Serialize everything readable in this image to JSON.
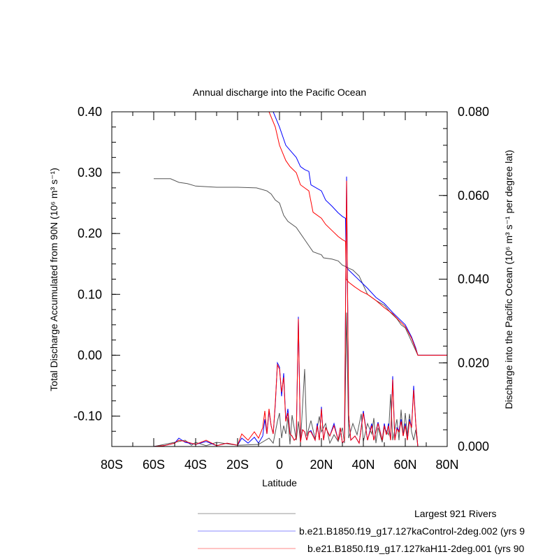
{
  "chart_data": {
    "type": "line",
    "title": "Annual discharge into the Pacific Ocean",
    "xlabel": "Latitude",
    "ylabel_left": "Total Discharge Accumulated from 90N (10⁶ m³ s⁻¹)",
    "ylabel_right": "Discharge into the Pacific Ocean (10⁶ m³ s⁻¹ per degree lat)",
    "xlim": [
      -80,
      80
    ],
    "ylim_left": [
      -0.15,
      0.4
    ],
    "ylim_right": [
      0.0,
      0.08
    ],
    "x_ticks": [
      -80,
      -60,
      -40,
      -20,
      0,
      20,
      40,
      60,
      80
    ],
    "x_tick_labels": [
      "80S",
      "60S",
      "40S",
      "20S",
      "0",
      "20N",
      "40N",
      "60N",
      "80N"
    ],
    "y_left_ticks": [
      -0.1,
      0.0,
      0.1,
      0.2,
      0.3,
      0.4
    ],
    "y_left_tick_labels": [
      "-0.10",
      "0.00",
      "0.10",
      "0.20",
      "0.30",
      "0.40"
    ],
    "y_right_ticks": [
      0.0,
      0.02,
      0.04,
      0.06,
      0.08
    ],
    "y_right_tick_labels": [
      "0.000",
      "0.020",
      "0.040",
      "0.060",
      "0.080"
    ],
    "legend_position": "bottom",
    "series": [
      {
        "name": "Largest 921 Rivers",
        "color": "#555555",
        "accumulated": {
          "x": [
            -60,
            -52,
            -48,
            -44,
            -40,
            -30,
            -20,
            -11,
            -6,
            -4,
            -2,
            0,
            2,
            4,
            8,
            10,
            12,
            14,
            16,
            20,
            21,
            25,
            28,
            30,
            32,
            33,
            35,
            38,
            42,
            46,
            50,
            53,
            56,
            58,
            60,
            62,
            64,
            66,
            80
          ],
          "y": [
            0.29,
            0.29,
            0.284,
            0.282,
            0.278,
            0.276,
            0.276,
            0.275,
            0.27,
            0.265,
            0.255,
            0.25,
            0.23,
            0.22,
            0.21,
            0.2,
            0.19,
            0.18,
            0.17,
            0.165,
            0.16,
            0.158,
            0.155,
            0.148,
            0.145,
            0.143,
            0.14,
            0.13,
            0.1,
            0.09,
            0.082,
            0.07,
            0.06,
            0.05,
            0.045,
            0.03,
            0.015,
            0.0,
            0.0
          ]
        },
        "per_degree": {
          "x": [
            -80,
            -60,
            -45,
            -42,
            -40,
            -35,
            -30,
            -20,
            -10,
            -5,
            -3,
            -1,
            0,
            1,
            2,
            3,
            4,
            5,
            6,
            8,
            9,
            10,
            12,
            13,
            15,
            17,
            19,
            20,
            22,
            24,
            26,
            28,
            30,
            31,
            32,
            33,
            35,
            37,
            39,
            40,
            42,
            44,
            45,
            46,
            47,
            49,
            50,
            52,
            53,
            54,
            56,
            57,
            58,
            59,
            60,
            61,
            62,
            63,
            64,
            65,
            66,
            80
          ],
          "y": [
            0.0,
            0.0,
            0.0015,
            0.0003,
            0.001,
            0.0002,
            0.001,
            0.0003,
            0.0005,
            0.002,
            0.0008,
            0.006,
            0.008,
            0.002,
            0.005,
            0.003,
            0.007,
            0.0005,
            0.0075,
            0.0015,
            0.006,
            0.001,
            0.0185,
            0.0025,
            0.0062,
            0.0018,
            0.0072,
            0.0035,
            0.0055,
            0.0008,
            0.0028,
            0.0012,
            0.0045,
            0.0008,
            0.032,
            0.002,
            0.0055,
            0.0028,
            0.0078,
            0.0012,
            0.0055,
            0.003,
            0.0068,
            0.0008,
            0.0045,
            0.001,
            0.0045,
            0.0028,
            0.0125,
            0.0015,
            0.0065,
            0.0015,
            0.0088,
            0.0025,
            0.008,
            0.0025,
            0.0078,
            0.0035,
            0.0015,
            0.004,
            0.0,
            0.0
          ]
        }
      },
      {
        "name": "b.e21.B1850.f19_g17.127kaControl-2deg.002 (yrs 9",
        "color": "#0000ff",
        "accumulated": {
          "x": [
            -3,
            0,
            3,
            5,
            8,
            10,
            12,
            14,
            15,
            20,
            22,
            25,
            28,
            30,
            31.5,
            31.8,
            33,
            36,
            39,
            42,
            46,
            50,
            54,
            57,
            60,
            63,
            65,
            66,
            80
          ],
          "y": [
            0.4,
            0.375,
            0.345,
            0.337,
            0.325,
            0.31,
            0.305,
            0.302,
            0.28,
            0.27,
            0.255,
            0.245,
            0.234,
            0.228,
            0.225,
            0.145,
            0.14,
            0.13,
            0.12,
            0.11,
            0.095,
            0.085,
            0.07,
            0.06,
            0.05,
            0.03,
            0.012,
            0.0,
            0.0
          ]
        },
        "per_degree": {
          "x": [
            -80,
            -60,
            -55,
            -50,
            -48,
            -45,
            -40,
            -35,
            -30,
            -25,
            -20,
            -18,
            -15,
            -12,
            -10,
            -8,
            -7,
            -6,
            -5,
            -4,
            -3,
            -2,
            -1,
            0,
            1,
            2,
            3,
            4,
            5,
            6,
            7,
            8,
            9,
            10,
            11,
            12,
            13,
            14,
            15,
            17,
            18,
            19,
            20,
            21,
            22,
            24,
            26,
            28,
            29,
            30,
            31,
            32,
            33,
            34,
            36,
            38,
            40,
            42,
            44,
            45,
            47,
            49,
            50,
            51,
            52,
            53,
            54,
            55,
            56,
            57,
            58,
            59,
            60,
            61,
            62,
            63,
            64,
            65,
            66,
            80
          ],
          "y": [
            0.0,
            0.0,
            0.0002,
            0.0008,
            0.002,
            0.001,
            0.0005,
            0.0012,
            0.0002,
            0.0008,
            0.0003,
            0.002,
            0.0008,
            0.0022,
            0.0008,
            0.0025,
            0.0065,
            0.003,
            0.0085,
            0.005,
            0.003,
            0.01,
            0.02,
            0.019,
            0.012,
            0.0175,
            0.006,
            0.009,
            0.003,
            0.0025,
            0.0015,
            0.002,
            0.031,
            0.001,
            0.004,
            0.0035,
            0.0015,
            0.0035,
            0.0038,
            0.0015,
            0.0055,
            0.0015,
            0.0095,
            0.0015,
            0.0045,
            0.0025,
            0.0055,
            0.0015,
            0.0045,
            0.0008,
            0.0015,
            0.0645,
            0.0075,
            0.0015,
            0.0025,
            0.0008,
            0.0085,
            0.0015,
            0.0055,
            0.0015,
            0.0058,
            0.0015,
            0.0055,
            0.0028,
            0.0055,
            0.0015,
            0.0168,
            0.0015,
            0.0045,
            0.0038,
            0.0065,
            0.0025,
            0.0055,
            0.0015,
            0.0065,
            0.0045,
            0.0145,
            0.0055,
            0.0,
            0.0
          ]
        }
      },
      {
        "name": "b.e21.B1850.f19_g17.127kaH11-2deg.001 (yrs 90",
        "color": "#ff0000",
        "accumulated": {
          "x": [
            -5,
            -2,
            0,
            3,
            5,
            8,
            10,
            12,
            14,
            16,
            20,
            22,
            25,
            28,
            30,
            31.5,
            31.8,
            33,
            36,
            39,
            42,
            46,
            50,
            54,
            57,
            60,
            63,
            65,
            66,
            80
          ],
          "y": [
            0.4,
            0.375,
            0.345,
            0.32,
            0.31,
            0.3,
            0.28,
            0.275,
            0.27,
            0.235,
            0.225,
            0.215,
            0.205,
            0.195,
            0.19,
            0.187,
            0.125,
            0.12,
            0.112,
            0.105,
            0.1,
            0.09,
            0.078,
            0.068,
            0.057,
            0.047,
            0.028,
            0.01,
            0.0,
            0.0
          ]
        },
        "per_degree": {
          "x": [
            -80,
            -60,
            -55,
            -50,
            -48,
            -45,
            -40,
            -35,
            -30,
            -25,
            -20,
            -18,
            -15,
            -12,
            -10,
            -8,
            -7,
            -6,
            -5,
            -4,
            -3,
            -2,
            -1,
            0,
            1,
            2,
            3,
            4,
            5,
            6,
            7,
            8,
            9,
            10,
            11,
            12,
            13,
            14,
            15,
            17,
            18,
            19,
            20,
            21,
            22,
            24,
            26,
            28,
            29,
            30,
            31,
            32,
            33,
            34,
            36,
            38,
            40,
            42,
            44,
            45,
            47,
            49,
            50,
            51,
            52,
            53,
            54,
            55,
            56,
            57,
            58,
            59,
            60,
            61,
            62,
            63,
            64,
            65,
            66,
            80
          ],
          "y": [
            0.0,
            0.0,
            0.0002,
            0.0008,
            0.0015,
            0.0012,
            0.0005,
            0.0015,
            0.0002,
            0.0008,
            0.0003,
            0.003,
            0.0015,
            0.0035,
            0.002,
            0.0045,
            0.0085,
            0.003,
            0.009,
            0.005,
            0.003,
            0.0105,
            0.0195,
            0.0185,
            0.013,
            0.0165,
            0.006,
            0.008,
            0.003,
            0.0025,
            0.0015,
            0.002,
            0.0305,
            0.001,
            0.004,
            0.0035,
            0.0015,
            0.0035,
            0.0035,
            0.0015,
            0.005,
            0.0015,
            0.009,
            0.0015,
            0.0045,
            0.0025,
            0.005,
            0.0015,
            0.0045,
            0.0008,
            0.0015,
            0.0635,
            0.0075,
            0.0015,
            0.0025,
            0.0008,
            0.008,
            0.0015,
            0.005,
            0.0015,
            0.0055,
            0.0015,
            0.005,
            0.0028,
            0.005,
            0.0015,
            0.016,
            0.0015,
            0.0042,
            0.0035,
            0.006,
            0.0025,
            0.005,
            0.0015,
            0.006,
            0.0045,
            0.0135,
            0.0055,
            0.0,
            0.0
          ]
        }
      }
    ]
  }
}
